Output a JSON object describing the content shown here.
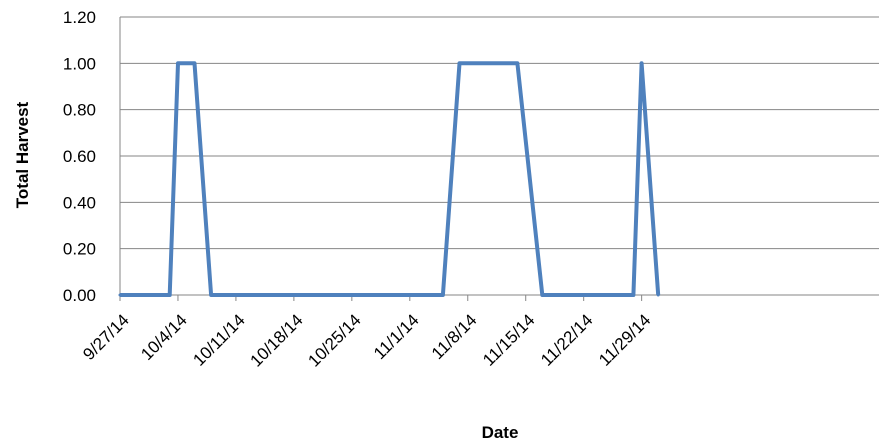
{
  "chart_data": {
    "type": "line",
    "title": "",
    "xlabel": "Date",
    "ylabel": "Total Harvest",
    "ylim": [
      0,
      1.2
    ],
    "yticks": [
      "0.00",
      "0.20",
      "0.40",
      "0.60",
      "0.80",
      "1.00",
      "1.20"
    ],
    "xticks": [
      "9/27/14",
      "10/4/14",
      "10/11/14",
      "10/18/14",
      "10/25/14",
      "11/1/14",
      "11/8/14",
      "11/15/14",
      "11/22/14",
      "11/29/14"
    ],
    "grid": "horizontal",
    "legend": "none",
    "series_color": "#4f81bd",
    "series": [
      {
        "x": [
          "9/27/14",
          "10/3/14",
          "10/4/14",
          "10/6/14",
          "10/8/14",
          "11/5/14",
          "11/7/14",
          "11/14/14",
          "11/17/14",
          "11/28/14",
          "11/29/14",
          "12/1/14"
        ],
        "values": [
          0,
          0,
          1,
          1,
          0,
          0,
          1,
          1,
          0,
          0,
          1,
          0
        ]
      }
    ]
  }
}
